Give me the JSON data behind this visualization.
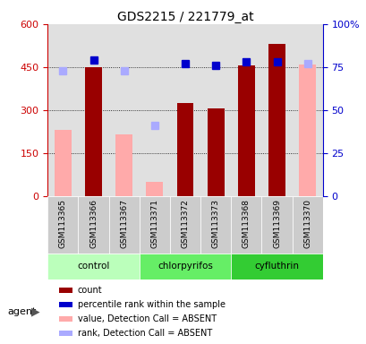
{
  "title": "GDS2215 / 221779_at",
  "samples": [
    "GSM113365",
    "GSM113366",
    "GSM113367",
    "GSM113371",
    "GSM113372",
    "GSM113373",
    "GSM113368",
    "GSM113369",
    "GSM113370"
  ],
  "groups": [
    {
      "label": "control",
      "start": 0,
      "end": 3,
      "color": "#aaffaa"
    },
    {
      "label": "chlorpyrifos",
      "start": 3,
      "end": 6,
      "color": "#66ee66"
    },
    {
      "label": "cyfluthrin",
      "start": 6,
      "end": 9,
      "color": "#33dd33"
    }
  ],
  "count_values": [
    null,
    450,
    null,
    null,
    325,
    305,
    455,
    530,
    null
  ],
  "count_color": "#990000",
  "value_absent": [
    230,
    null,
    215,
    50,
    null,
    null,
    null,
    null,
    460
  ],
  "value_absent_color": "#ffaaaa",
  "rank_absent_pct": [
    73,
    null,
    73,
    41,
    null,
    null,
    null,
    null,
    77
  ],
  "rank_absent_color": "#aaaaff",
  "pct_rank_present": [
    null,
    79,
    null,
    null,
    77,
    76,
    78,
    78,
    null
  ],
  "pct_rank_color": "#0000cc",
  "ylim_left": [
    0,
    600
  ],
  "ylim_right": [
    0,
    100
  ],
  "yticks_left": [
    0,
    150,
    300,
    450,
    600
  ],
  "yticks_right": [
    0,
    25,
    50,
    75,
    100
  ],
  "ytick_labels_left": [
    "0",
    "150",
    "300",
    "450",
    "600"
  ],
  "ytick_labels_right": [
    "0",
    "25",
    "50",
    "75",
    "100%"
  ],
  "left_tick_color": "#cc0000",
  "right_tick_color": "#0000cc",
  "plot_bg_color": "#e0e0e0",
  "sample_bg_color": "#cccccc",
  "bar_width": 0.55,
  "marker_size": 6,
  "legend_items": [
    {
      "color": "#990000",
      "label": "count"
    },
    {
      "color": "#0000cc",
      "label": "percentile rank within the sample"
    },
    {
      "color": "#ffaaaa",
      "label": "value, Detection Call = ABSENT"
    },
    {
      "color": "#aaaaff",
      "label": "rank, Detection Call = ABSENT"
    }
  ],
  "agent_label": "agent"
}
